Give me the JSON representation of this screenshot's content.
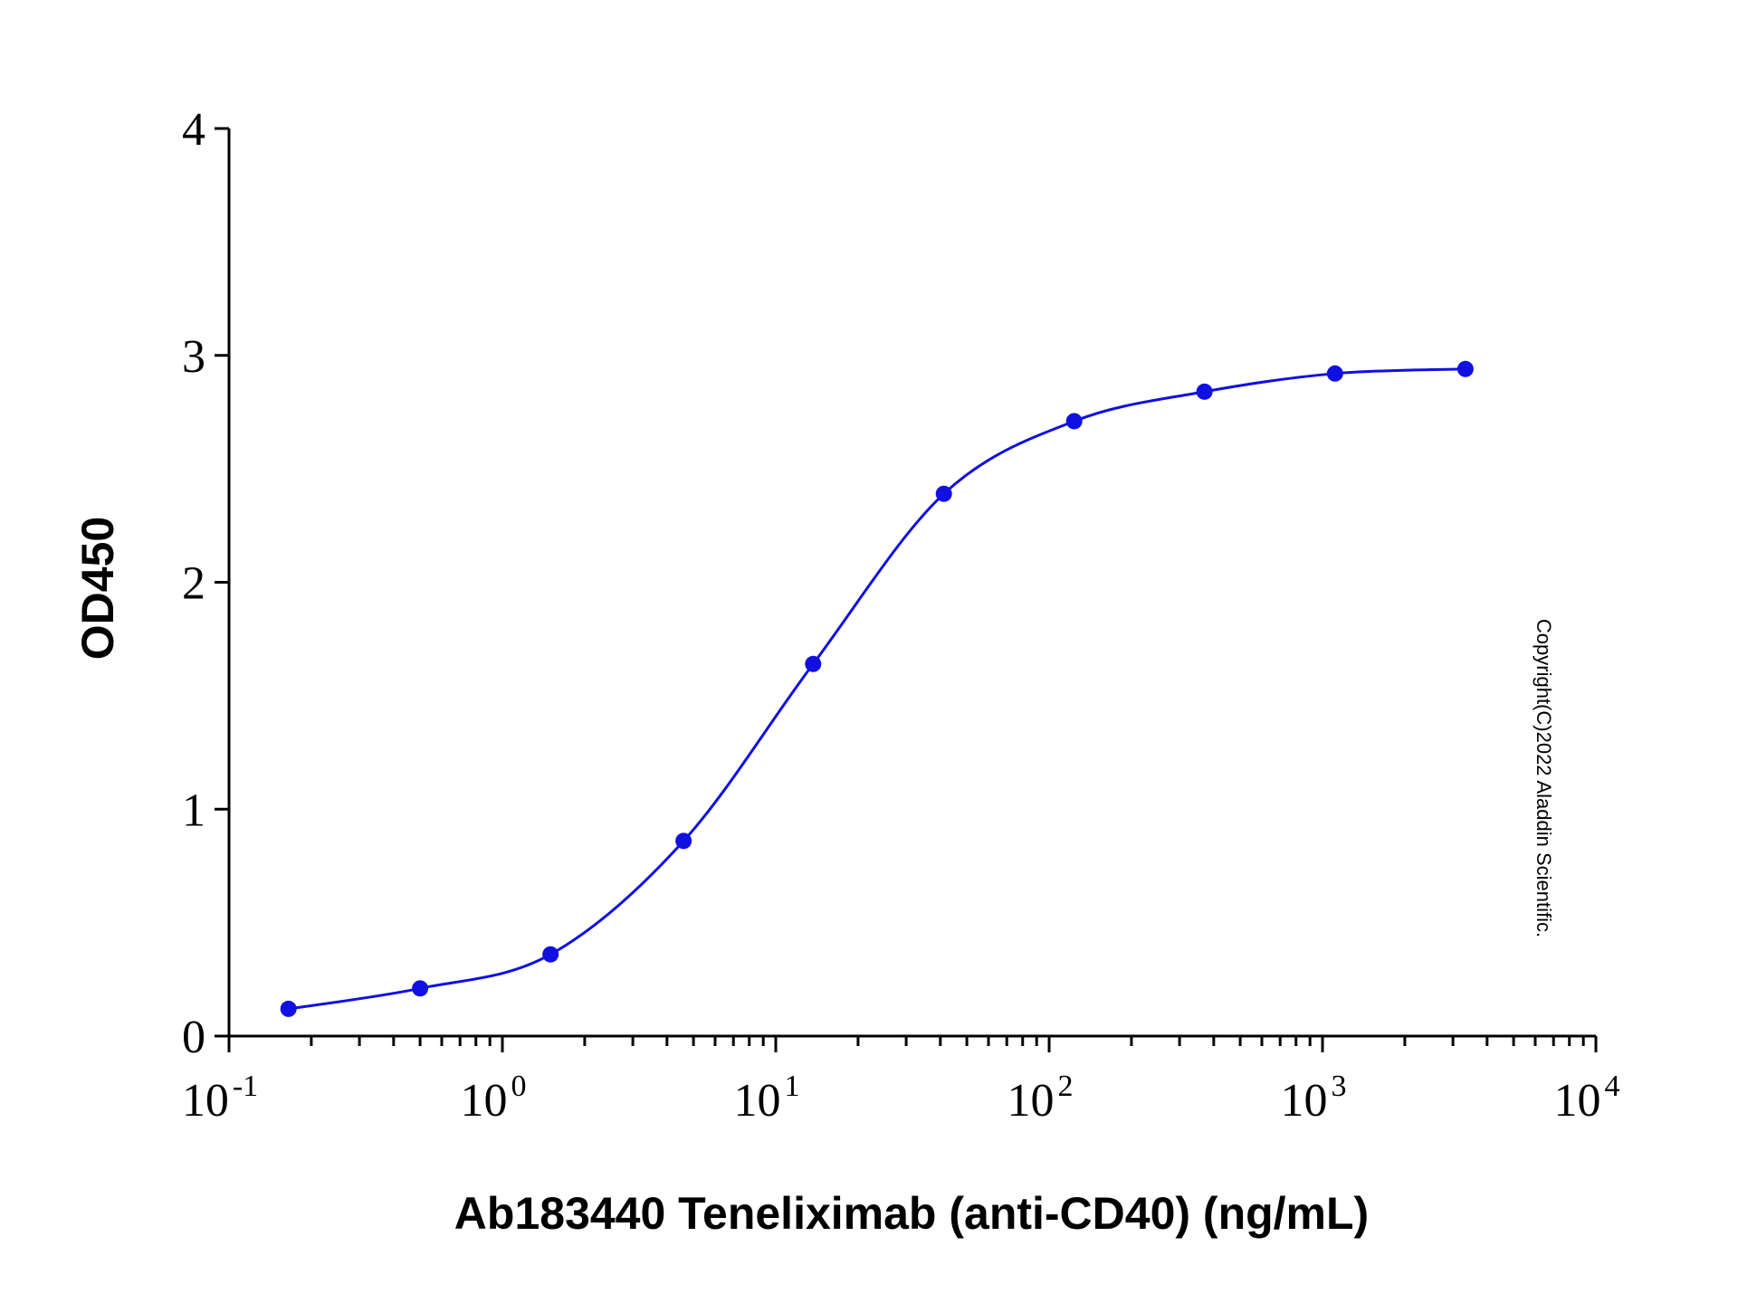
{
  "chart_data": {
    "type": "scatter",
    "title": "",
    "xlabel": "Ab183440 Teneliximab (anti-CD40) (ng/mL)",
    "ylabel": "OD450",
    "x_scale": "log",
    "xlim": [
      0.1,
      10000
    ],
    "ylim": [
      0,
      4
    ],
    "x_ticks": [
      {
        "value": 0.1,
        "base": "10",
        "exponent": "-1"
      },
      {
        "value": 1,
        "base": "10",
        "exponent": "0"
      },
      {
        "value": 10,
        "base": "10",
        "exponent": "1"
      },
      {
        "value": 100,
        "base": "10",
        "exponent": "2"
      },
      {
        "value": 1000,
        "base": "10",
        "exponent": "3"
      },
      {
        "value": 10000,
        "base": "10",
        "exponent": "4"
      }
    ],
    "y_ticks": [
      "0",
      "1",
      "2",
      "3",
      "4"
    ],
    "grid": false,
    "legend": "none",
    "fit": "4-parameter logistic",
    "series": [
      {
        "color": "#1010e0",
        "x": [
          0.165,
          0.5,
          1.5,
          4.6,
          13.7,
          41.2,
          123.5,
          370,
          1111,
          3333
        ],
        "y": [
          0.12,
          0.21,
          0.36,
          0.86,
          1.64,
          2.39,
          2.71,
          2.84,
          2.92,
          2.94
        ]
      }
    ]
  },
  "copyright": "Copyright(C)2022 Aladdin Scientific."
}
